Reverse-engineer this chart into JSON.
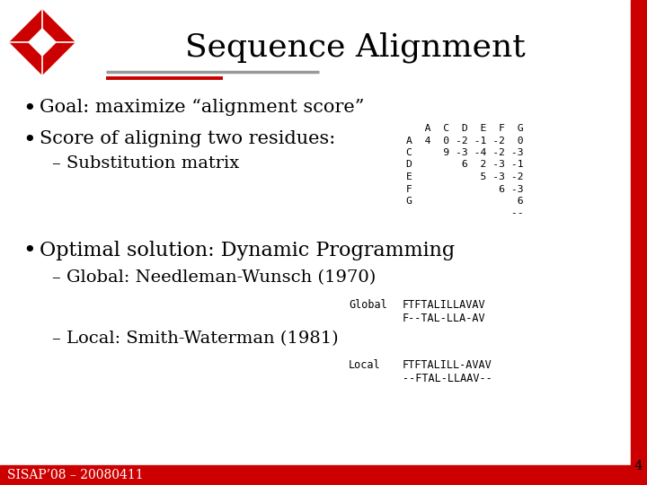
{
  "title": "Sequence Alignment",
  "title_fontsize": 26,
  "bg_color": "#ffffff",
  "bullet1": "Goal: maximize “alignment score”",
  "bullet2": "Score of aligning two residues:",
  "sub1": "– Substitution matrix",
  "bullet3": "Optimal solution: Dynamic Programming",
  "sub2": "– Global: Needleman-Wunsch (1970)",
  "sub3": "– Local: Smith-Waterman (1981)",
  "matrix_lines": [
    "   A  C  D  E  F  G",
    "A  4  0 -2 -1 -2  0",
    "C     9 -3 -4 -2 -3",
    "D        6  2 -3 -1",
    "E           5 -3 -2",
    "F              6 -3",
    "G                 6",
    "                 --"
  ],
  "global_label": "Global",
  "global_line1": "FTFTALILLAVAV",
  "global_line2": "F--TAL-LLA-AV",
  "local_label": "Local",
  "local_line1": "FTFTALILL-AVAV",
  "local_line2": "--FTAL-LLAAV--",
  "footer": "SISAP’08 – 20080411",
  "page_num": "4",
  "header_line1_color": "#999999",
  "header_line2_color": "#cc0000",
  "footer_bar_color": "#cc0000",
  "bullet_font_size": 15,
  "sub_font_size": 14,
  "mono_font_size": 8.5,
  "footer_font_size": 10,
  "text_color": "#000000",
  "accent_color": "#cc0000",
  "right_bar_width": 18
}
